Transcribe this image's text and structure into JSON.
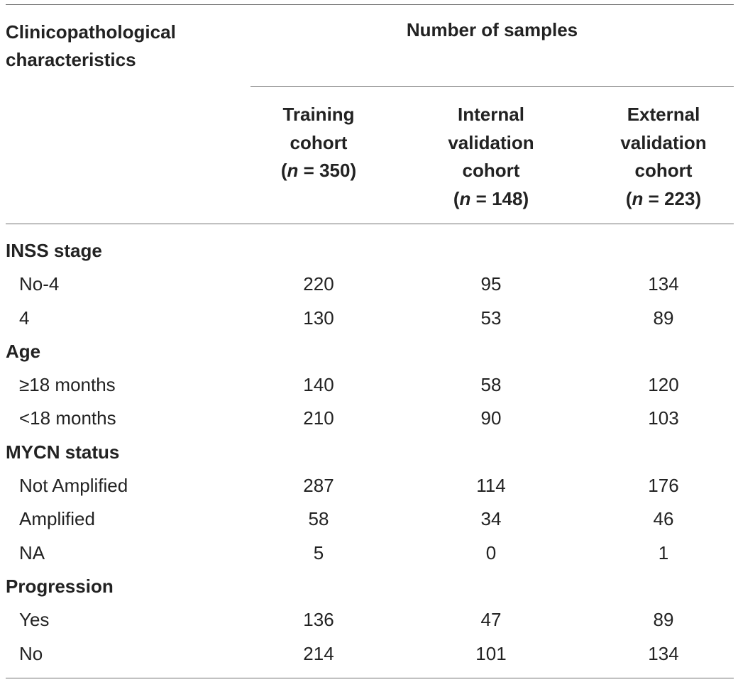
{
  "header": {
    "characteristics_label_line1": "Clinicopathological",
    "characteristics_label_line2": "characteristics",
    "group_header": "Number of samples",
    "columns": [
      {
        "line1": "Training",
        "line2": "cohort",
        "line3_prefix": "(",
        "n_symbol": "n",
        "line3_suffix": " = 350)"
      },
      {
        "line1": "Internal",
        "line2": "validation",
        "line3": "cohort",
        "line4_prefix": "(",
        "n_symbol": "n",
        "line4_suffix": " = 148)"
      },
      {
        "line1": "External",
        "line2": "validation",
        "line3": "cohort",
        "line4_prefix": "(",
        "n_symbol": "n",
        "line4_suffix": " = 223)"
      }
    ]
  },
  "rows": [
    {
      "type": "group",
      "label": "INSS stage"
    },
    {
      "type": "item",
      "label": "No-4",
      "values": [
        "220",
        "95",
        "134"
      ]
    },
    {
      "type": "item",
      "label": "4",
      "values": [
        "130",
        "53",
        "89"
      ]
    },
    {
      "type": "group",
      "label": "Age"
    },
    {
      "type": "item",
      "label": "≥18 months",
      "values": [
        "140",
        "58",
        "120"
      ]
    },
    {
      "type": "item",
      "label": "<18 months",
      "values": [
        "210",
        "90",
        "103"
      ]
    },
    {
      "type": "group",
      "label": "MYCN status"
    },
    {
      "type": "item",
      "label": "Not Amplified",
      "values": [
        "287",
        "114",
        "176"
      ]
    },
    {
      "type": "item",
      "label": "Amplified",
      "values": [
        "58",
        "34",
        "46"
      ]
    },
    {
      "type": "item",
      "label": "NA",
      "values": [
        "5",
        "0",
        "1"
      ]
    },
    {
      "type": "group",
      "label": "Progression"
    },
    {
      "type": "item",
      "label": "Yes",
      "values": [
        "136",
        "47",
        "89"
      ]
    },
    {
      "type": "item",
      "label": "No",
      "values": [
        "214",
        "101",
        "134"
      ]
    }
  ]
}
